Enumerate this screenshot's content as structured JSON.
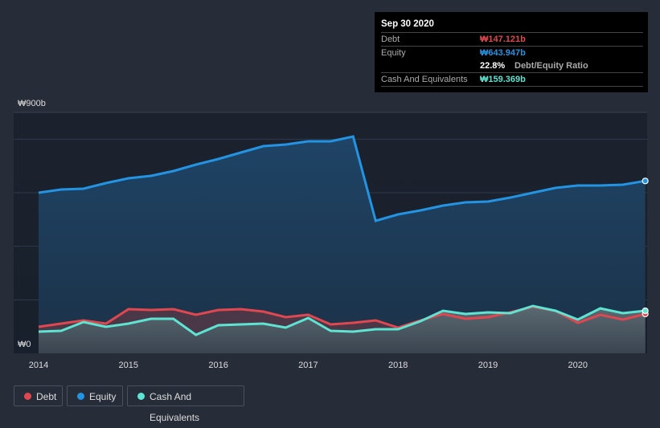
{
  "tooltip": {
    "date": "Sep 30 2020",
    "debt_label": "Debt",
    "debt_value": "₩147.121b",
    "equity_label": "Equity",
    "equity_value": "₩643.947b",
    "ratio_value": "22.8%",
    "ratio_label": "Debt/Equity Ratio",
    "cash_label": "Cash And Equivalents",
    "cash_value": "₩159.369b"
  },
  "legend": [
    {
      "label": "Debt",
      "color": "#e0474f"
    },
    {
      "label": "Equity",
      "color": "#2394e4"
    },
    {
      "label": "Cash And Equivalents",
      "color": "#5ee4d2"
    }
  ],
  "chart_data": {
    "type": "area",
    "ylabel_top": "₩900b",
    "ylabel_bottom": "₩0",
    "ylim": [
      0,
      900
    ],
    "grid_step": 200,
    "yunit": "₩b",
    "x_ticks": [
      "2014",
      "2015",
      "2016",
      "2017",
      "2018",
      "2019",
      "2020"
    ],
    "x": [
      2014,
      2014.25,
      2014.5,
      2014.75,
      2015,
      2015.25,
      2015.5,
      2015.75,
      2016,
      2016.25,
      2016.5,
      2016.75,
      2017,
      2017.25,
      2017.5,
      2017.75,
      2018,
      2018.25,
      2018.5,
      2018.75,
      2019,
      2019.25,
      2019.5,
      2019.75,
      2020,
      2020.25,
      2020.5,
      2020.75
    ],
    "series": [
      {
        "name": "Equity",
        "color": "#2394e4",
        "values": [
          600,
          612,
          615,
          636,
          654,
          663,
          681,
          705,
          726,
          750,
          774,
          780,
          792,
          792,
          810,
          495,
          519,
          534,
          552,
          564,
          567,
          582,
          600,
          618,
          627,
          627,
          630,
          644
        ]
      },
      {
        "name": "Debt",
        "color": "#e0474f",
        "values": [
          99,
          111,
          123,
          111,
          165,
          162,
          165,
          144,
          162,
          165,
          156,
          135,
          144,
          108,
          114,
          123,
          96,
          123,
          147,
          129,
          135,
          153,
          174,
          159,
          114,
          144,
          126,
          147
        ]
      },
      {
        "name": "Cash And Equivalents",
        "color": "#5ee4d2",
        "values": [
          81,
          84,
          117,
          99,
          111,
          129,
          129,
          69,
          105,
          108,
          111,
          96,
          132,
          84,
          81,
          90,
          90,
          120,
          159,
          147,
          153,
          150,
          177,
          159,
          126,
          168,
          150,
          159
        ]
      }
    ]
  }
}
